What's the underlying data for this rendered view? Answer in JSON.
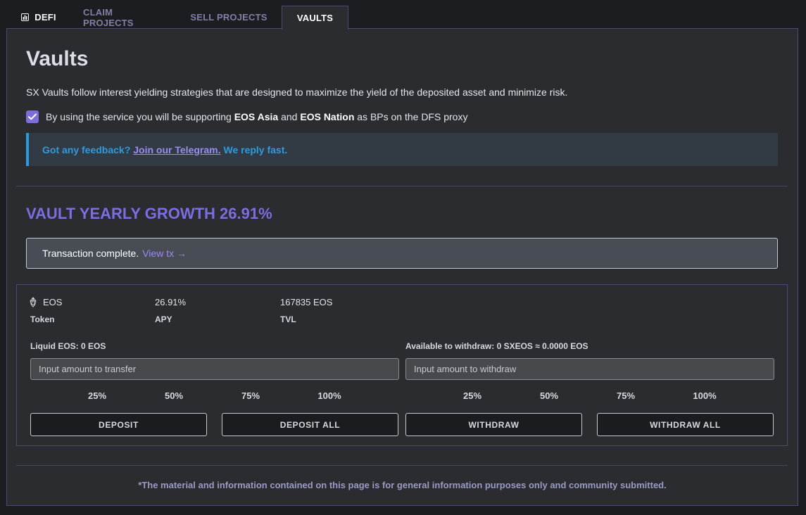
{
  "tabs": {
    "defi": "DEFI",
    "claim": "CLAIM PROJECTS",
    "sell": "SELL PROJECTS",
    "vaults": "VAULTS"
  },
  "page": {
    "title": "Vaults",
    "description": "SX Vaults follow interest yielding strategies that are designed to maximize the yield of the deposited asset and minimize risk.",
    "consent": {
      "checked": true,
      "prefix": "By using the service you will be supporting",
      "bp1": "EOS Asia",
      "and": "and",
      "bp2": "EOS Nation",
      "suffix": "as BPs on the DFS proxy"
    },
    "feedback": {
      "prefix": "Got any feedback?",
      "link": "Join our Telegram.",
      "suffix": "We reply fast."
    }
  },
  "growth": "VAULT YEARLY GROWTH 26.91%",
  "transaction": {
    "message": "Transaction complete.",
    "link": "View tx →"
  },
  "vault": {
    "token_value": "EOS",
    "token_label": "Token",
    "apy_value": "26.91%",
    "apy_label": "APY",
    "tvl_value": "167835 EOS",
    "tvl_label": "TVL",
    "deposit": {
      "balance_label": "Liquid EOS: 0 EOS",
      "placeholder": "Input amount to transfer",
      "percents": [
        "25%",
        "50%",
        "75%",
        "100%"
      ],
      "button": "DEPOSIT",
      "button_all": "DEPOSIT ALL"
    },
    "withdraw": {
      "balance_label": "Available to withdraw: 0 SXEOS ≈ 0.0000 EOS",
      "placeholder": "Input amount to withdraw",
      "percents": [
        "25%",
        "50%",
        "75%",
        "100%"
      ],
      "button": "WITHDRAW",
      "button_all": "WITHDRAW ALL"
    }
  },
  "footer": "*The material and information contained on this page is for general information purposes only and community submitted.",
  "colors": {
    "accent": "#7a6fe0",
    "info": "#2e9be0",
    "border": "#4a4c70",
    "panel": "#2a2c30"
  },
  "icons": {
    "defi": "chart-icon",
    "token": "eos-icon",
    "checkbox": "checkmark-icon"
  }
}
